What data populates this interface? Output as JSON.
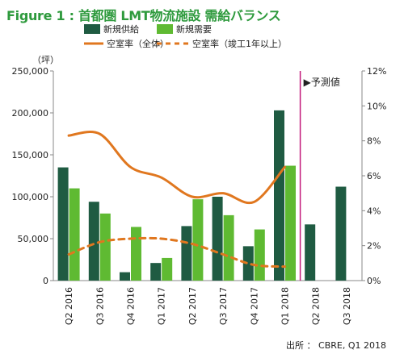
{
  "figure": {
    "title": "Figure 1 : 首都圏 LMT物流施設 需給バランス",
    "source": "出所 ： CBRE, Q1 2018"
  },
  "colors": {
    "supply": "#1f5b42",
    "demand": "#5fba32",
    "vacancy_all": "#e0771f",
    "vacancy_1yr": "#e0771f",
    "forecast_line": "#c2187a",
    "axis": "#888888",
    "title": "#2e9a3d"
  },
  "chart_data": {
    "type": "bar",
    "categories": [
      "Q2 2016",
      "Q3 2016",
      "Q4 2016",
      "Q1 2017",
      "Q2 2017",
      "Q3 2017",
      "Q4 2017",
      "Q1 2018",
      "Q2 2018",
      "Q3 2018"
    ],
    "series": [
      {
        "name": "新規供給",
        "type": "bar",
        "axis": "left",
        "values": [
          135000,
          94000,
          10000,
          21000,
          65000,
          100000,
          41000,
          203000,
          67000,
          112000
        ]
      },
      {
        "name": "新規需要",
        "type": "bar",
        "axis": "left",
        "values": [
          110000,
          80000,
          64000,
          27000,
          97000,
          78000,
          61000,
          137000,
          null,
          null
        ]
      },
      {
        "name": "空室率（全体）",
        "type": "line",
        "style": "solid",
        "axis": "right",
        "values": [
          8.3,
          8.4,
          6.5,
          5.9,
          4.8,
          5.0,
          4.5,
          6.5,
          null,
          null
        ]
      },
      {
        "name": "空室率（竣工1年以上）",
        "type": "line",
        "style": "dashed",
        "axis": "right",
        "values": [
          1.5,
          2.2,
          2.4,
          2.4,
          2.1,
          1.5,
          0.9,
          0.8,
          null,
          null
        ]
      }
    ],
    "y_left": {
      "unit_label": "（坪）",
      "min": 0,
      "max": 250000,
      "ticks": [
        "0",
        "50,000",
        "100,000",
        "150,000",
        "200,000",
        "250,000"
      ]
    },
    "y_right": {
      "min": 0,
      "max": 12,
      "ticks": [
        "0%",
        "2%",
        "4%",
        "6%",
        "8%",
        "10%",
        "12%"
      ]
    },
    "forecast": {
      "label": "▶予測値",
      "starts_after": "Q1 2018"
    },
    "legend_placement": "top",
    "grid": false
  }
}
